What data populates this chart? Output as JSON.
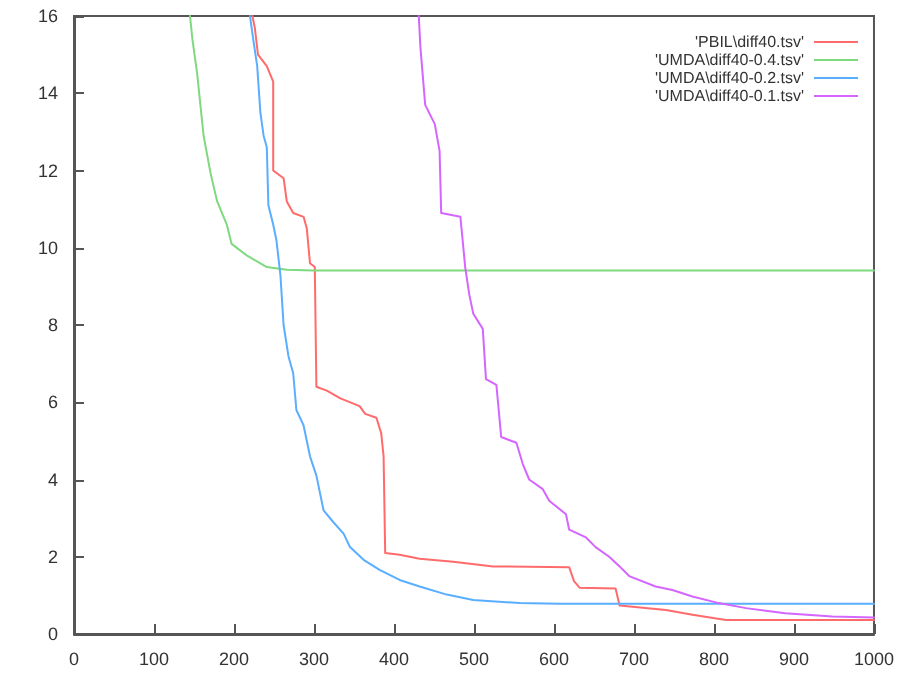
{
  "chart_data": {
    "type": "line",
    "xlim": [
      0,
      1000
    ],
    "ylim": [
      0,
      16
    ],
    "xticks": [
      0,
      100,
      200,
      300,
      400,
      500,
      600,
      700,
      800,
      900,
      1000
    ],
    "yticks": [
      0,
      2,
      4,
      6,
      8,
      10,
      12,
      14,
      16
    ],
    "grid": false,
    "legend": "top right",
    "marker": "none",
    "line_style": "solid",
    "series": [
      {
        "name": "'PBIL\\diff40.tsv'",
        "color": "#ff6b6b",
        "x": [
          223,
          226,
          230,
          241,
          249,
          249,
          262,
          266,
          274,
          287,
          291,
          295,
          301,
          303,
          316,
          333,
          357,
          364,
          378,
          384,
          387,
          389,
          407,
          432,
          474,
          524,
          619,
          625,
          632,
          677,
          682,
          740,
          773,
          815,
          1000
        ],
        "values": [
          16,
          15.7,
          15.0,
          14.7,
          14.3,
          12.0,
          11.8,
          11.2,
          10.9,
          10.8,
          10.5,
          9.6,
          9.5,
          6.4,
          6.3,
          6.1,
          5.9,
          5.7,
          5.6,
          5.2,
          4.6,
          2.1,
          2.05,
          1.95,
          1.87,
          1.75,
          1.73,
          1.37,
          1.2,
          1.18,
          0.74,
          0.62,
          0.5,
          0.36,
          0.36
        ]
      },
      {
        "name": "'UMDA\\diff40-0.4.tsv'",
        "color": "#7fd97f",
        "x": [
          145,
          148,
          154,
          158,
          162,
          171,
          179,
          191,
          197,
          216,
          241,
          266,
          299,
          1000
        ],
        "values": [
          16,
          15.4,
          14.5,
          13.7,
          12.9,
          11.9,
          11.2,
          10.6,
          10.1,
          9.8,
          9.5,
          9.43,
          9.41,
          9.41
        ]
      },
      {
        "name": "'UMDA\\diff40-0.2.tsv'",
        "color": "#5aaeff",
        "x": [
          220,
          224,
          229,
          233,
          237,
          241,
          243,
          249,
          253,
          258,
          262,
          268,
          274,
          278,
          287,
          295,
          303,
          312,
          324,
          337,
          345,
          362,
          382,
          407,
          432,
          466,
          499,
          557,
          607,
          1000
        ],
        "values": [
          16,
          15.4,
          14.7,
          13.5,
          12.9,
          12.6,
          11.1,
          10.6,
          10.2,
          9.3,
          8.0,
          7.2,
          6.75,
          5.8,
          5.4,
          4.6,
          4.1,
          3.2,
          2.9,
          2.6,
          2.25,
          1.92,
          1.66,
          1.4,
          1.23,
          1.02,
          0.88,
          0.8,
          0.78,
          0.78
        ]
      },
      {
        "name": "'UMDA\\diff40-0.1.tsv'",
        "color": "#d466ff",
        "x": [
          431,
          433,
          439,
          451,
          457,
          459,
          483,
          489,
          494,
          499,
          511,
          515,
          528,
          534,
          553,
          561,
          569,
          586,
          594,
          615,
          619,
          640,
          652,
          669,
          682,
          694,
          727,
          748,
          773,
          806,
          840,
          889,
          948,
          1000
        ],
        "values": [
          16,
          15.2,
          13.7,
          13.2,
          12.5,
          10.9,
          10.8,
          9.5,
          8.8,
          8.3,
          7.9,
          6.6,
          6.45,
          5.1,
          4.95,
          4.4,
          4.0,
          3.75,
          3.45,
          3.1,
          2.7,
          2.5,
          2.25,
          2.0,
          1.75,
          1.5,
          1.23,
          1.14,
          0.97,
          0.8,
          0.67,
          0.54,
          0.45,
          0.43
        ]
      }
    ]
  }
}
